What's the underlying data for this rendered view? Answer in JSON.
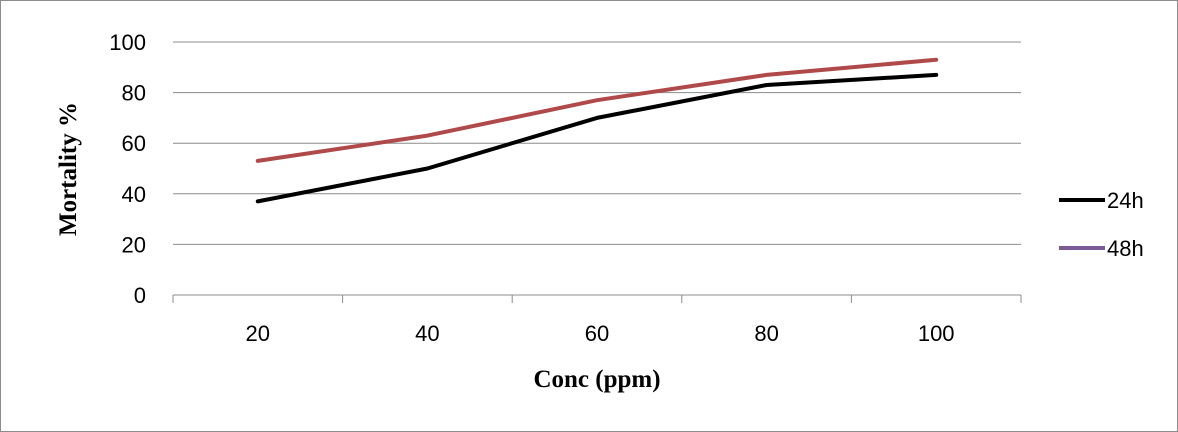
{
  "chart_data": {
    "type": "line",
    "title": "",
    "xlabel": "Conc (ppm)",
    "ylabel": "Mortality  %",
    "x": [
      20,
      40,
      60,
      80,
      100
    ],
    "x_ticks": [
      "20",
      "40",
      "60",
      "80",
      "100"
    ],
    "y_ticks": [
      "0",
      "20",
      "40",
      "60",
      "80",
      "100"
    ],
    "ylim": [
      0,
      100
    ],
    "grid": "horizontal",
    "legend_position": "right",
    "series": [
      {
        "name": "24h",
        "values": [
          37,
          50,
          70,
          83,
          87
        ],
        "color": "#000000",
        "legend_color": "#000000"
      },
      {
        "name": "48h",
        "values": [
          53,
          63,
          77,
          87,
          93
        ],
        "color": "#b04a4a",
        "legend_color": "#7a5a96"
      }
    ]
  }
}
